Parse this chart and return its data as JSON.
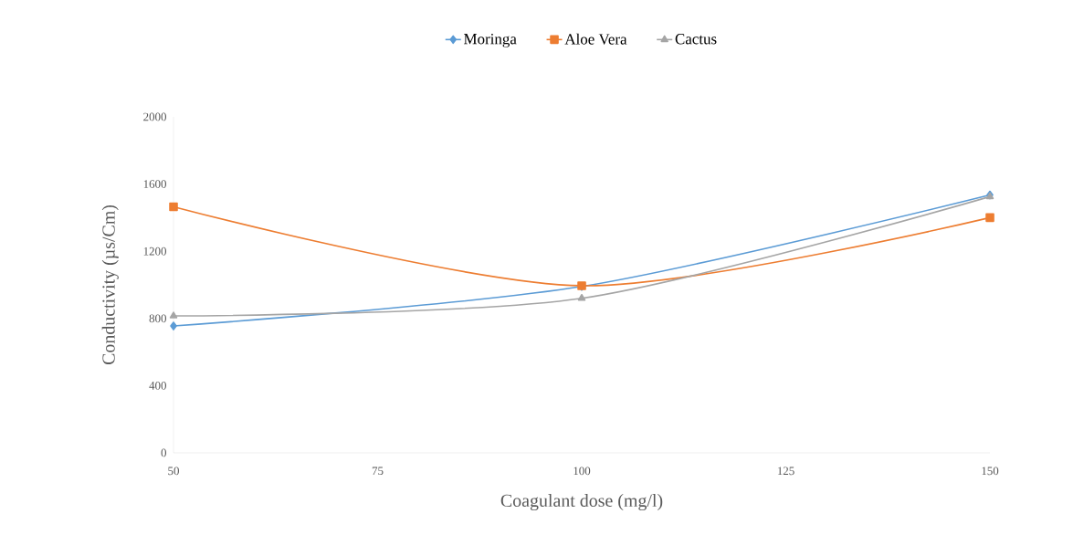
{
  "chart_data": {
    "type": "line",
    "xlabel": "Coagulant dose (mg/l)",
    "ylabel": "Conductivity (µs/Cm)",
    "x": [
      50,
      100,
      150
    ],
    "series": [
      {
        "name": "Moringa",
        "color": "#5b9bd5",
        "values": [
          755,
          990,
          1535
        ],
        "marker": "diamond"
      },
      {
        "name": "Aloe Vera",
        "color": "#ed7d31",
        "values": [
          1465,
          995,
          1400
        ],
        "marker": "square"
      },
      {
        "name": "Cactus",
        "color": "#a5a5a5",
        "values": [
          815,
          920,
          1525
        ],
        "marker": "triangle"
      }
    ],
    "xlim": [
      50,
      150
    ],
    "xticks": [
      50,
      75,
      100,
      125,
      150
    ],
    "ylim": [
      0,
      2000
    ],
    "yticks": [
      0,
      400,
      800,
      1200,
      1600,
      2000
    ],
    "grid": false,
    "legend": "top",
    "line_style": "solid"
  }
}
